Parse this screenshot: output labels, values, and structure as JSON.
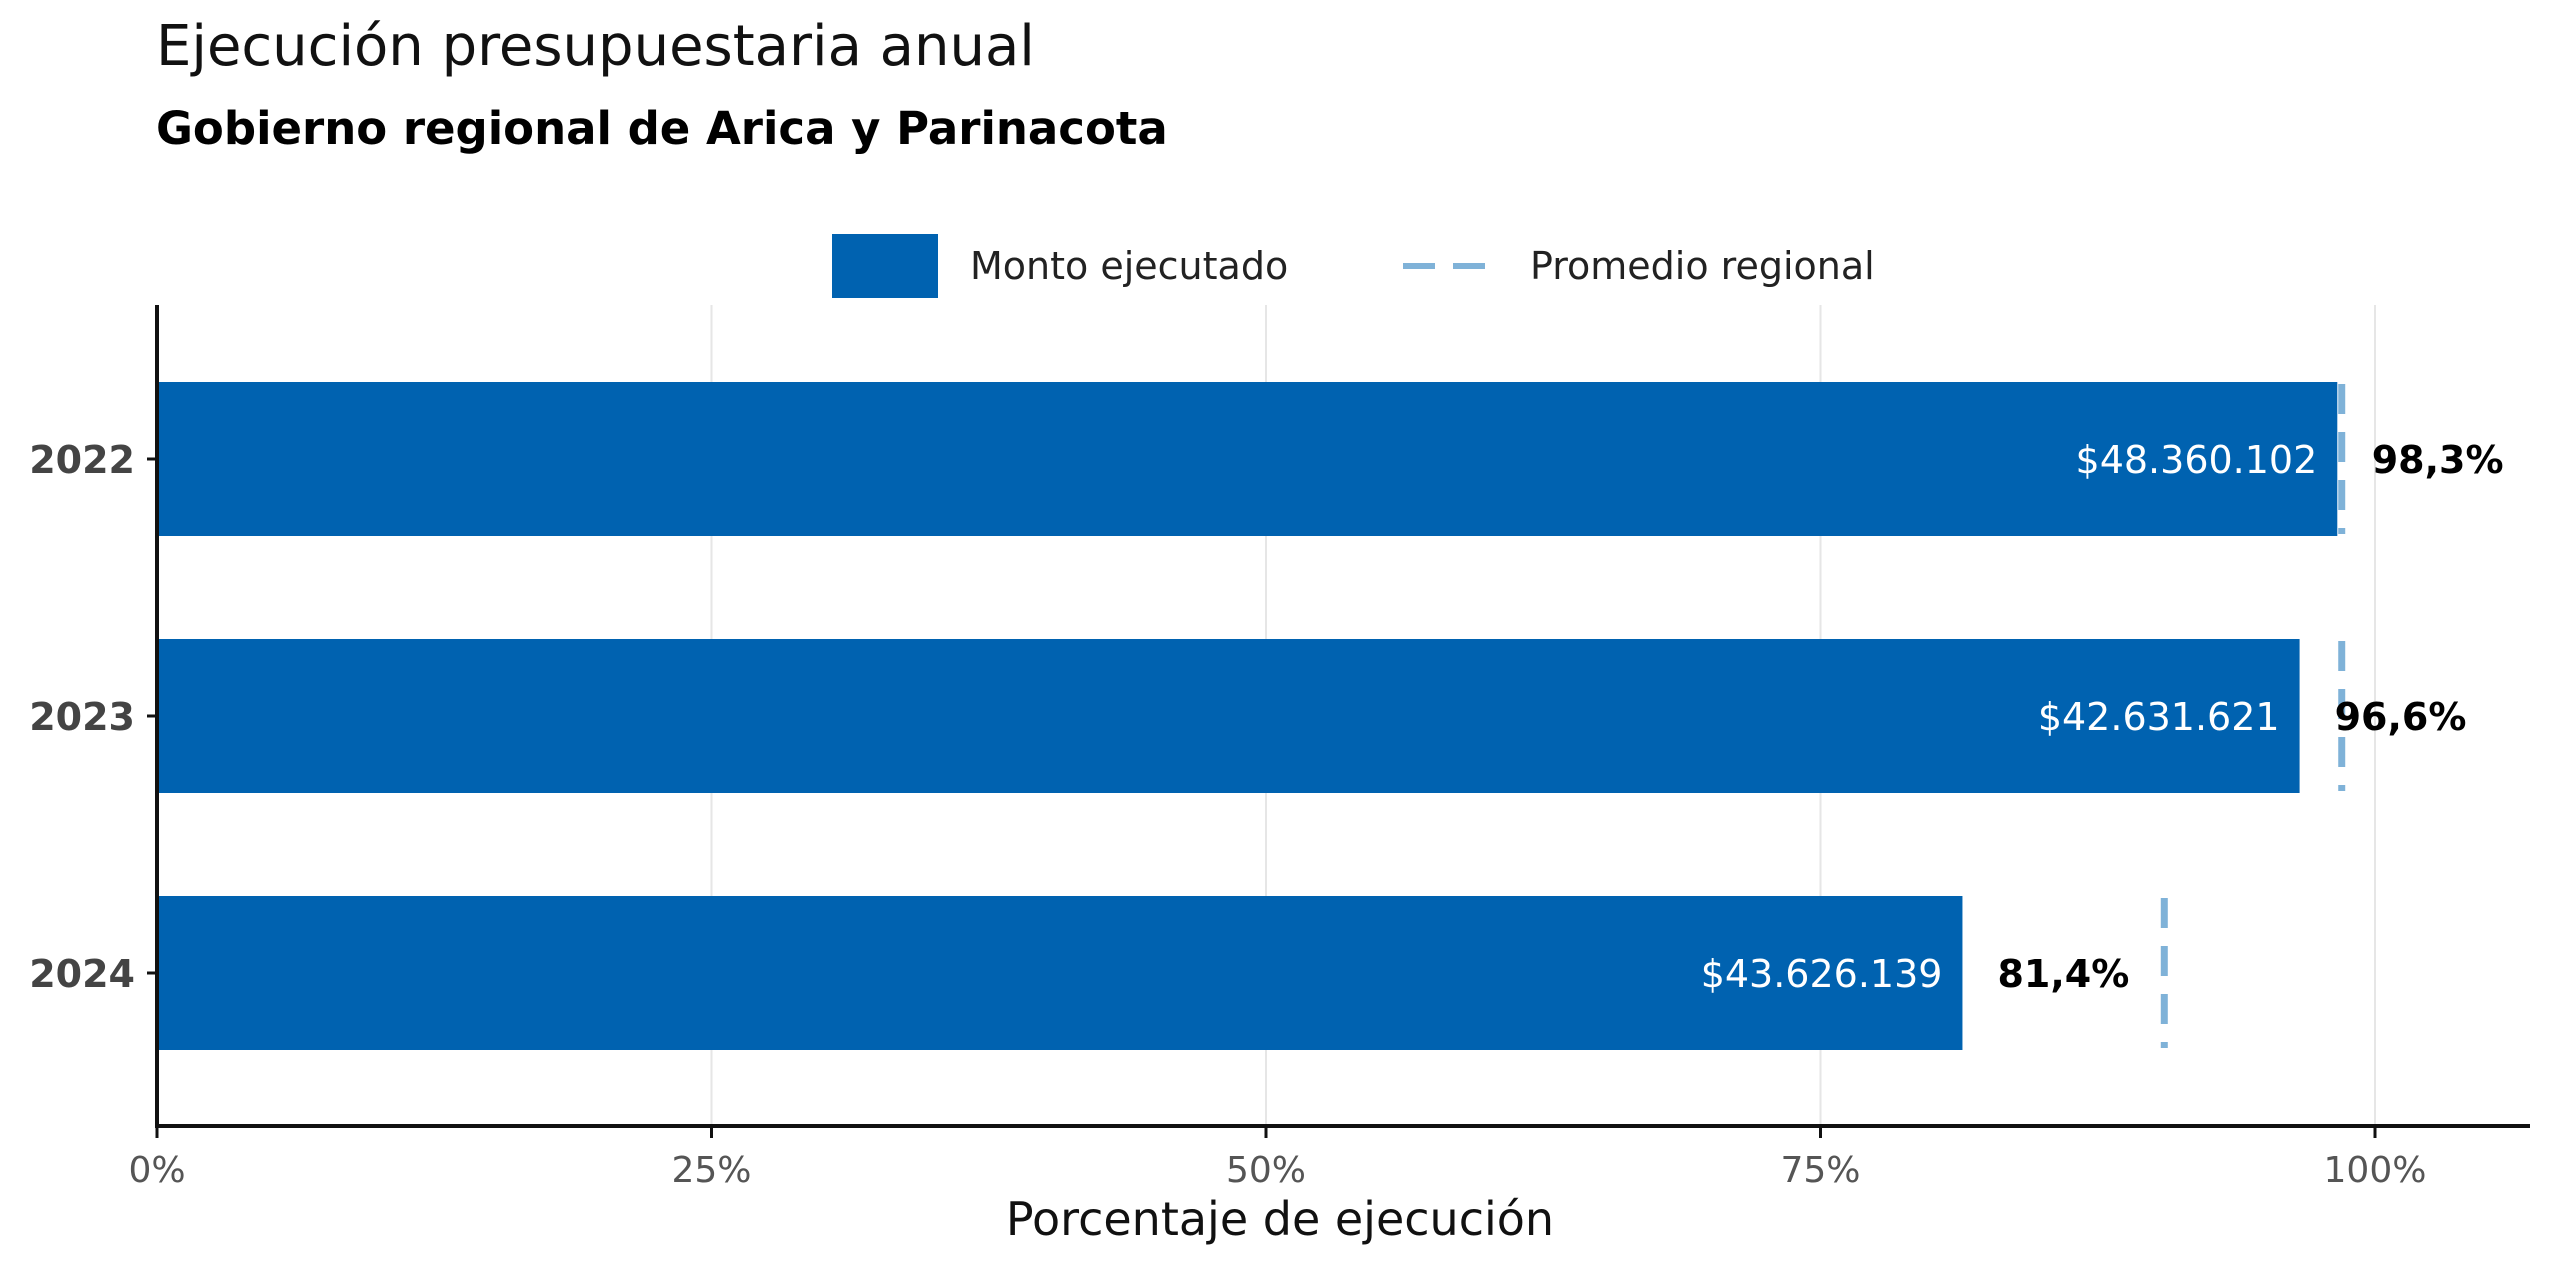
{
  "title": "Ejecución presupuestaria anual",
  "subtitle": "Gobierno regional de Arica y Parinacota",
  "legend": {
    "bar_label": "Monto ejecutado",
    "line_label": "Promedio regional"
  },
  "colors": {
    "bar": "#0062b0",
    "average": "#7fb2d8",
    "axis": "#111111",
    "grid": "#e6e6e6",
    "tick_text": "#555555",
    "category_text": "#444444"
  },
  "chart_data": {
    "type": "bar",
    "orientation": "horizontal",
    "categories": [
      "2022",
      "2023",
      "2024"
    ],
    "values": [
      98.3,
      96.6,
      81.4
    ],
    "value_labels": [
      "98,3%",
      "96,6%",
      "81,4%"
    ],
    "amount_labels": [
      "$48.360.102",
      "$42.631.621",
      "$43.626.139"
    ],
    "regional_average": [
      98.5,
      98.5,
      90.5
    ],
    "xlabel": "Porcentaje de ejecución",
    "ylabel": "",
    "xlim": [
      0,
      107
    ],
    "xticks": [
      0,
      25,
      50,
      75,
      100
    ],
    "xtick_labels": [
      "0%",
      "25%",
      "50%",
      "75%",
      "100%"
    ],
    "grid": "vertical",
    "legend_position": "top",
    "series": [
      {
        "name": "Monto ejecutado",
        "values": [
          98.3,
          96.6,
          81.4
        ]
      },
      {
        "name": "Promedio regional",
        "values": [
          98.5,
          98.5,
          90.5
        ]
      }
    ]
  }
}
